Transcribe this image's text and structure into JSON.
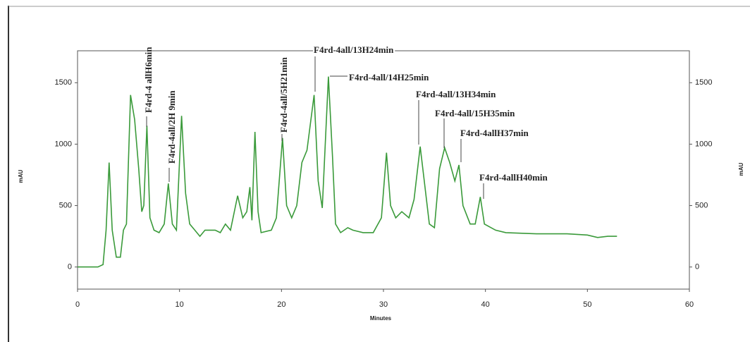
{
  "chart_data": {
    "type": "line",
    "x_label": "Minutes",
    "y_label": "mAU",
    "y2_label": "mAU",
    "x": [
      0,
      2,
      2.5,
      2.8,
      3.1,
      3.4,
      3.8,
      4.2,
      4.5,
      4.8,
      5.2,
      5.6,
      6.0,
      6.3,
      6.5,
      6.8,
      7.1,
      7.5,
      8.0,
      8.5,
      8.9,
      9.3,
      9.7,
      10.2,
      10.6,
      11,
      11.5,
      12,
      12.5,
      13.5,
      14,
      14.5,
      15,
      15.7,
      16.2,
      16.6,
      16.9,
      17.1,
      17.4,
      17.7,
      18,
      19,
      19.5,
      20.1,
      20.5,
      21,
      21.5,
      22,
      22.5,
      23.2,
      23.6,
      24,
      24.6,
      25,
      25.3,
      25.8,
      26.5,
      27,
      28,
      29,
      29.8,
      30.3,
      30.7,
      31.2,
      31.8,
      32.5,
      33.0,
      33.6,
      34.0,
      34.5,
      35,
      35.5,
      36,
      36.5,
      37,
      37.4,
      37.8,
      38.5,
      39.0,
      39.5,
      39.9,
      41,
      42,
      45,
      48,
      50,
      51,
      52,
      52.9
    ],
    "values": [
      0,
      0,
      20,
      300,
      850,
      300,
      80,
      80,
      300,
      350,
      1400,
      1200,
      800,
      450,
      500,
      1150,
      400,
      300,
      280,
      350,
      680,
      350,
      300,
      1230,
      600,
      350,
      300,
      250,
      300,
      300,
      280,
      350,
      300,
      580,
      400,
      450,
      650,
      380,
      1100,
      450,
      280,
      300,
      400,
      1050,
      500,
      400,
      500,
      850,
      950,
      1400,
      700,
      480,
      1550,
      900,
      350,
      280,
      320,
      300,
      280,
      280,
      400,
      930,
      500,
      400,
      450,
      400,
      550,
      980,
      700,
      350,
      320,
      800,
      970,
      850,
      700,
      830,
      500,
      350,
      350,
      570,
      350,
      300,
      280,
      270,
      270,
      260,
      240,
      250,
      250
    ],
    "color": "#3a9a3a",
    "xlim": [
      0,
      60
    ],
    "xticks": [
      0,
      10,
      20,
      30,
      40,
      50,
      60
    ],
    "ylim": [
      -180,
      1760
    ],
    "yticks": [
      0,
      500,
      1000,
      1500
    ],
    "y2ticks": [
      0,
      500,
      1000,
      1500
    ],
    "annotations": [
      "F4rd-4 allH6min",
      "F4rd-4all/2H 9min",
      "F4rd-4all/5H21min",
      "F4rd-4all/13H24min",
      "F4rd-4all/14H25min",
      "F4rd-4all/13H34min",
      "F4rd-4all/15H35min",
      "F4rd-4allH37min",
      "F4rd-4allH40min"
    ]
  }
}
